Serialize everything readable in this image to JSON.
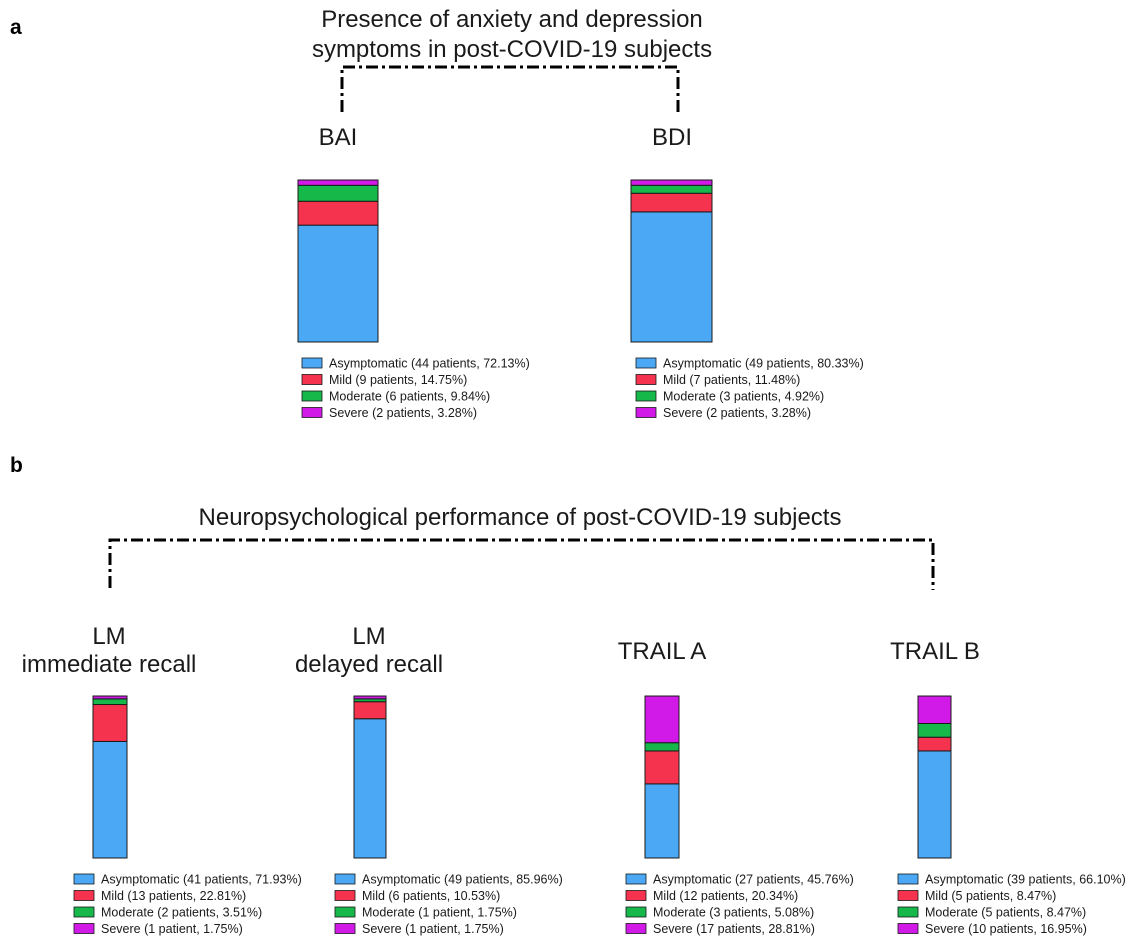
{
  "panels": [
    {
      "letter": "a",
      "title": [
        "Presence of anxiety and depression",
        "symptoms in post-COVID-19 subjects"
      ]
    },
    {
      "letter": "b",
      "title": [
        "Neuropsychological performance of post-COVID-19 subjects"
      ]
    }
  ],
  "colors": {
    "Asymptomatic": "#4aa8f5",
    "Mild": "#f5334f",
    "Moderate": "#16b84a",
    "Severe": "#d21ae8"
  },
  "chart_data": [
    {
      "type": "bar",
      "stacked": true,
      "title": [
        "BAI"
      ],
      "unit": "%",
      "ylim": [
        0,
        100
      ],
      "categories": [
        "BAI"
      ],
      "series": [
        {
          "name": "Asymptomatic",
          "values": [
            72.13
          ],
          "label": "Asymptomatic (44 patients, 72.13%)"
        },
        {
          "name": "Mild",
          "values": [
            14.75
          ],
          "label": "Mild (9 patients, 14.75%)"
        },
        {
          "name": "Moderate",
          "values": [
            9.84
          ],
          "label": "Moderate (6 patients, 9.84%)"
        },
        {
          "name": "Severe",
          "values": [
            3.28
          ],
          "label": "Severe (2 patients, 3.28%)"
        }
      ]
    },
    {
      "type": "bar",
      "stacked": true,
      "title": [
        "BDI"
      ],
      "unit": "%",
      "ylim": [
        0,
        100
      ],
      "categories": [
        "BDI"
      ],
      "series": [
        {
          "name": "Asymptomatic",
          "values": [
            80.33
          ],
          "label": "Asymptomatic (49 patients, 80.33%)"
        },
        {
          "name": "Mild",
          "values": [
            11.48
          ],
          "label": "Mild (7 patients, 11.48%)"
        },
        {
          "name": "Moderate",
          "values": [
            4.92
          ],
          "label": "Moderate (3 patients, 4.92%)"
        },
        {
          "name": "Severe",
          "values": [
            3.28
          ],
          "label": "Severe (2 patients, 3.28%)"
        }
      ]
    },
    {
      "type": "bar",
      "stacked": true,
      "title": [
        "LM",
        "immediate recall"
      ],
      "unit": "%",
      "ylim": [
        0,
        100
      ],
      "categories": [
        "LM immediate recall"
      ],
      "series": [
        {
          "name": "Asymptomatic",
          "values": [
            71.93
          ],
          "label": "Asymptomatic (41 patients, 71.93%)"
        },
        {
          "name": "Mild",
          "values": [
            22.81
          ],
          "label": "Mild (13 patients, 22.81%)"
        },
        {
          "name": "Moderate",
          "values": [
            3.51
          ],
          "label": "Moderate (2 patients, 3.51%)"
        },
        {
          "name": "Severe",
          "values": [
            1.75
          ],
          "label": "Severe (1 patient, 1.75%)"
        }
      ]
    },
    {
      "type": "bar",
      "stacked": true,
      "title": [
        "LM",
        "delayed recall"
      ],
      "unit": "%",
      "ylim": [
        0,
        100
      ],
      "categories": [
        "LM delayed recall"
      ],
      "series": [
        {
          "name": "Asymptomatic",
          "values": [
            85.96
          ],
          "label": "Asymptomatic (49 patients, 85.96%)"
        },
        {
          "name": "Mild",
          "values": [
            10.53
          ],
          "label": "Mild (6 patients, 10.53%)"
        },
        {
          "name": "Moderate",
          "values": [
            1.75
          ],
          "label": "Moderate (1 patient, 1.75%)"
        },
        {
          "name": "Severe",
          "values": [
            1.75
          ],
          "label": "Severe (1 patient, 1.75%)"
        }
      ]
    },
    {
      "type": "bar",
      "stacked": true,
      "title": [
        "TRAIL A"
      ],
      "unit": "%",
      "ylim": [
        0,
        100
      ],
      "categories": [
        "TRAIL A"
      ],
      "series": [
        {
          "name": "Asymptomatic",
          "values": [
            45.76
          ],
          "label": "Asymptomatic (27 patients, 45.76%)"
        },
        {
          "name": "Mild",
          "values": [
            20.34
          ],
          "label": "Mild (12 patients, 20.34%)"
        },
        {
          "name": "Moderate",
          "values": [
            5.08
          ],
          "label": "Moderate (3 patients, 5.08%)"
        },
        {
          "name": "Severe",
          "values": [
            28.81
          ],
          "label": "Severe (17 patients, 28.81%)"
        }
      ]
    },
    {
      "type": "bar",
      "stacked": true,
      "title": [
        "TRAIL B"
      ],
      "unit": "%",
      "ylim": [
        0,
        100
      ],
      "categories": [
        "TRAIL B"
      ],
      "series": [
        {
          "name": "Asymptomatic",
          "values": [
            66.1
          ],
          "label": "Asymptomatic (39 patients, 66.10%)"
        },
        {
          "name": "Mild",
          "values": [
            8.47
          ],
          "label": "Mild (5 patients, 8.47%)"
        },
        {
          "name": "Moderate",
          "values": [
            8.47
          ],
          "label": "Moderate (5 patients, 8.47%)"
        },
        {
          "name": "Severe",
          "values": [
            16.95
          ],
          "label": "Severe (10 patients, 16.95%)"
        }
      ]
    }
  ]
}
